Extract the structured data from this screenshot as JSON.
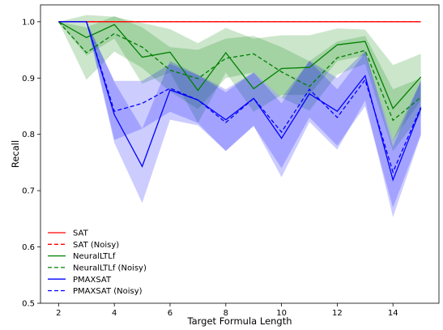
{
  "chart_data": {
    "type": "line",
    "xlabel": "Target Formula Length",
    "ylabel": "Recall",
    "xlim": [
      1.35,
      15.65
    ],
    "ylim": [
      0.5,
      1.03
    ],
    "xticks": [
      2,
      4,
      6,
      8,
      10,
      12,
      14
    ],
    "yticks": [
      0.5,
      0.6,
      0.7,
      0.8,
      0.9,
      1.0
    ],
    "yticklabels": [
      "0.5",
      "0.6",
      "0.7",
      "0.8",
      "0.9",
      "1.0"
    ],
    "grid": false,
    "legend_position": "lower-left",
    "x": [
      2,
      3,
      4,
      5,
      6,
      7,
      8,
      9,
      10,
      11,
      12,
      13,
      14,
      15
    ],
    "series": [
      {
        "name": "SAT",
        "color": "#ff0000",
        "linestyle": "solid",
        "x": [
          2,
          3,
          4,
          5,
          6,
          7,
          8,
          9,
          10,
          11,
          12,
          13,
          14,
          15
        ],
        "values": [
          1.0,
          1.0,
          1.0,
          1.0,
          1.0,
          1.0,
          1.0,
          1.0,
          1.0,
          1.0,
          1.0,
          1.0,
          1.0,
          1.0
        ]
      },
      {
        "name": "SAT (Noisy)",
        "color": "#ff0000",
        "linestyle": "dashed",
        "x": [
          2,
          3,
          4,
          5,
          6,
          7,
          8,
          9,
          10,
          11,
          12,
          13,
          14,
          15
        ],
        "values": [
          1.0,
          1.0,
          1.0,
          1.0,
          1.0,
          1.0,
          1.0,
          1.0,
          1.0,
          1.0,
          1.0,
          1.0,
          1.0,
          1.0
        ]
      },
      {
        "name": "NeuralLTLf",
        "color": "#008000",
        "linestyle": "solid",
        "x": [
          2,
          3,
          4,
          5,
          6,
          7,
          8,
          9,
          10,
          11,
          12,
          13,
          14,
          15
        ],
        "values": [
          1.0,
          0.972,
          0.995,
          0.937,
          0.946,
          0.878,
          0.945,
          0.881,
          0.917,
          0.919,
          0.959,
          0.965,
          0.846,
          0.902
        ],
        "band_lower": [
          1.0,
          0.94,
          0.97,
          0.89,
          0.91,
          0.82,
          0.91,
          0.84,
          0.87,
          0.87,
          0.93,
          0.94,
          0.79,
          0.86
        ],
        "band_upper": [
          1.0,
          1.012,
          1.009,
          0.998,
          0.987,
          0.962,
          0.989,
          0.97,
          0.976,
          0.976,
          0.988,
          0.986,
          0.923,
          0.943
        ]
      },
      {
        "name": "NeuralLTLf (Noisy)",
        "color": "#008000",
        "linestyle": "dashed",
        "x": [
          2,
          3,
          4,
          5,
          6,
          7,
          8,
          9,
          10,
          11,
          12,
          13,
          14,
          15
        ],
        "values": [
          1.0,
          0.945,
          0.979,
          0.955,
          0.914,
          0.899,
          0.935,
          0.943,
          0.911,
          0.885,
          0.936,
          0.949,
          0.825,
          0.866
        ],
        "band_lower": [
          1.0,
          0.897,
          0.947,
          0.918,
          0.876,
          0.845,
          0.9,
          0.91,
          0.865,
          0.842,
          0.906,
          0.925,
          0.77,
          0.835
        ],
        "band_upper": [
          1.0,
          0.99,
          1.01,
          0.99,
          0.955,
          0.95,
          0.97,
          0.975,
          0.955,
          0.93,
          0.965,
          0.975,
          0.88,
          0.9
        ]
      },
      {
        "name": "PMAXSAT",
        "color": "#0000ff",
        "linestyle": "solid",
        "x": [
          2,
          3,
          4,
          5,
          6,
          7,
          8,
          9,
          10,
          11,
          12,
          13,
          14,
          15
        ],
        "values": [
          1.0,
          1.0,
          0.835,
          0.743,
          0.879,
          0.861,
          0.826,
          0.864,
          0.793,
          0.872,
          0.841,
          0.904,
          0.719,
          0.846
        ],
        "band_lower": [
          1.0,
          1.0,
          0.785,
          0.678,
          0.826,
          0.816,
          0.771,
          0.815,
          0.724,
          0.822,
          0.773,
          0.86,
          0.653,
          0.798
        ],
        "band_upper": [
          1.0,
          1.0,
          0.893,
          0.81,
          0.93,
          0.906,
          0.88,
          0.91,
          0.855,
          0.931,
          0.9,
          0.948,
          0.778,
          0.895
        ]
      },
      {
        "name": "PMAXSAT (Noisy)",
        "color": "#0000ff",
        "linestyle": "dashed",
        "x": [
          3,
          4,
          5,
          6,
          7,
          8,
          9,
          10,
          11,
          12,
          13,
          14,
          15
        ],
        "values": [
          1.0,
          0.841,
          0.855,
          0.882,
          0.861,
          0.821,
          0.864,
          0.804,
          0.88,
          0.83,
          0.897,
          0.733,
          0.848
        ],
        "band_lower": [
          1.0,
          0.79,
          0.81,
          0.84,
          0.82,
          0.77,
          0.815,
          0.74,
          0.83,
          0.78,
          0.85,
          0.67,
          0.8
        ],
        "band_upper": [
          1.0,
          0.895,
          0.895,
          0.925,
          0.905,
          0.875,
          0.91,
          0.865,
          0.93,
          0.88,
          0.945,
          0.79,
          0.895
        ]
      }
    ]
  }
}
